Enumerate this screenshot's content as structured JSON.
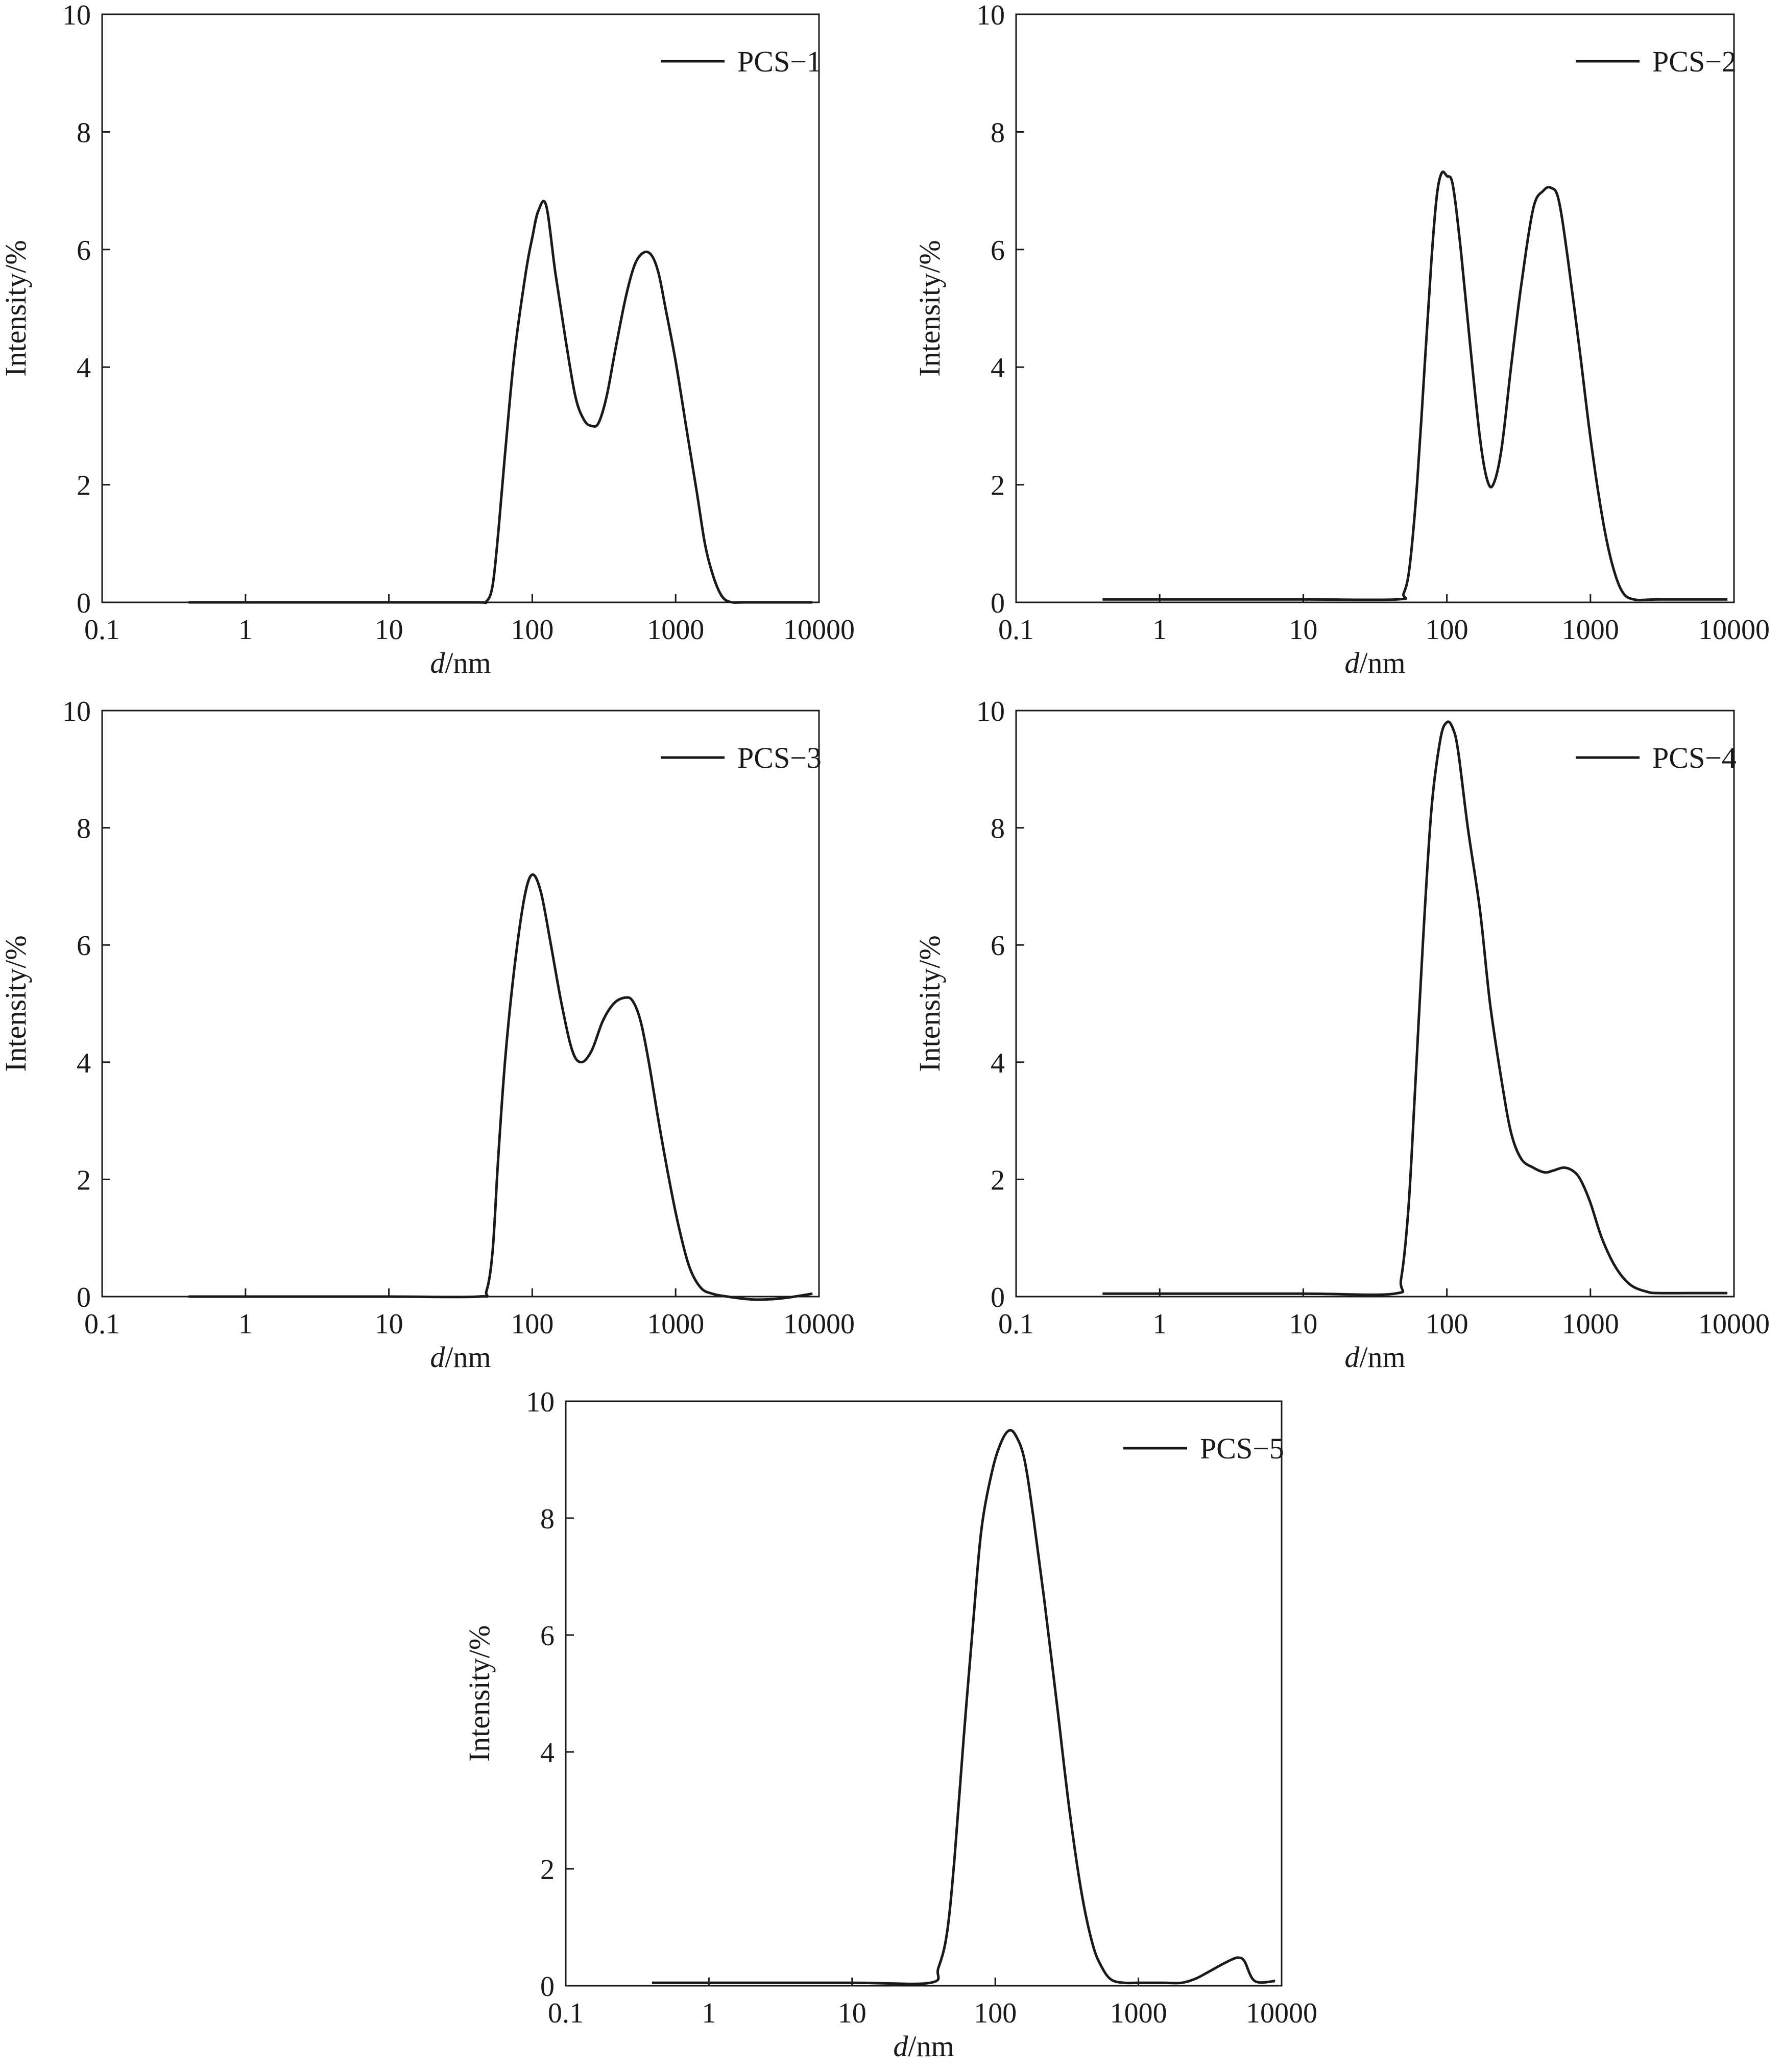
{
  "figure": {
    "background": "#ffffff",
    "line_color": "#1a1a1a"
  },
  "chart_data": [
    {
      "type": "line",
      "xscale": "log",
      "xlim": [
        0.1,
        10000
      ],
      "ylim": [
        0,
        10
      ],
      "xticks": [
        0.1,
        1,
        10,
        100,
        1000,
        10000
      ],
      "xtick_labels": [
        "0.1",
        "1",
        "10",
        "100",
        "1000",
        "10000"
      ],
      "yticks": [
        0,
        2,
        4,
        6,
        8,
        10
      ],
      "ytick_labels": [
        "0",
        "2",
        "4",
        "6",
        "8",
        "10"
      ],
      "xlabel_italic": "d",
      "xlabel_rest": "/nm",
      "ylabel": "Intensity/%",
      "legend_position": "top-right",
      "series": [
        {
          "name": "PCS−1",
          "x": [
            0.4,
            1,
            10,
            40,
            48,
            53,
            58,
            65,
            75,
            90,
            100,
            110,
            125,
            145,
            170,
            200,
            230,
            260,
            290,
            330,
            380,
            450,
            520,
            600,
            680,
            760,
            850,
            1000,
            1200,
            1400,
            1600,
            1800,
            2000,
            2200,
            2500,
            3000,
            5000,
            9000
          ],
          "y": [
            0,
            0,
            0,
            0,
            0.02,
            0.3,
            1.2,
            2.6,
            4.2,
            5.6,
            6.2,
            6.65,
            6.75,
            5.6,
            4.5,
            3.5,
            3.1,
            3.0,
            3.05,
            3.5,
            4.3,
            5.2,
            5.75,
            5.95,
            5.9,
            5.6,
            5.0,
            4.1,
            2.9,
            1.9,
            1.0,
            0.5,
            0.2,
            0.05,
            0,
            0,
            0,
            0
          ]
        }
      ]
    },
    {
      "type": "line",
      "xscale": "log",
      "xlim": [
        0.1,
        10000
      ],
      "ylim": [
        0,
        10
      ],
      "xticks": [
        0.1,
        1,
        10,
        100,
        1000,
        10000
      ],
      "xtick_labels": [
        "0.1",
        "1",
        "10",
        "100",
        "1000",
        "10000"
      ],
      "yticks": [
        0,
        2,
        4,
        6,
        8,
        10
      ],
      "ytick_labels": [
        "0",
        "2",
        "4",
        "6",
        "8",
        "10"
      ],
      "xlabel_italic": "d",
      "xlabel_rest": "/nm",
      "ylabel": "Intensity/%",
      "legend_position": "top-right",
      "series": [
        {
          "name": "PCS−2",
          "x": [
            0.4,
            1,
            10,
            45,
            50,
            55,
            62,
            70,
            78,
            85,
            92,
            100,
            110,
            125,
            145,
            170,
            190,
            210,
            240,
            280,
            330,
            400,
            470,
            530,
            600,
            700,
            850,
            1000,
            1200,
            1400,
            1650,
            2000,
            3000,
            9000
          ],
          "y": [
            0.05,
            0.05,
            0.05,
            0.05,
            0.15,
            0.6,
            2.0,
            4.0,
            5.8,
            6.9,
            7.3,
            7.25,
            7.1,
            6.0,
            4.4,
            2.8,
            2.1,
            2.0,
            2.6,
            4.0,
            5.4,
            6.7,
            7.0,
            7.05,
            6.85,
            5.8,
            4.2,
            2.8,
            1.5,
            0.7,
            0.2,
            0.05,
            0.05,
            0.05
          ]
        }
      ]
    },
    {
      "type": "line",
      "xscale": "log",
      "xlim": [
        0.1,
        10000
      ],
      "ylim": [
        0,
        10
      ],
      "xticks": [
        0.1,
        1,
        10,
        100,
        1000,
        10000
      ],
      "xtick_labels": [
        "0.1",
        "1",
        "10",
        "100",
        "1000",
        "10000"
      ],
      "yticks": [
        0,
        2,
        4,
        6,
        8,
        10
      ],
      "ytick_labels": [
        "0",
        "2",
        "4",
        "6",
        "8",
        "10"
      ],
      "xlabel_italic": "d",
      "xlabel_rest": "/nm",
      "ylabel": "Intensity/%",
      "legend_position": "top-right",
      "series": [
        {
          "name": "PCS−3",
          "x": [
            0.4,
            1,
            10,
            42,
            48,
            53,
            58,
            65,
            75,
            88,
            100,
            115,
            135,
            160,
            190,
            220,
            260,
            310,
            370,
            440,
            500,
            570,
            650,
            760,
            900,
            1050,
            1250,
            1500,
            1800,
            2300,
            3500,
            5500,
            9000
          ],
          "y": [
            0,
            0,
            0,
            0,
            0.1,
            0.8,
            2.4,
            4.1,
            5.6,
            6.8,
            7.2,
            6.9,
            6.0,
            5.0,
            4.2,
            4.0,
            4.2,
            4.7,
            5.0,
            5.1,
            5.05,
            4.7,
            4.0,
            3.0,
            2.0,
            1.2,
            0.5,
            0.15,
            0.05,
            0,
            -0.05,
            -0.03,
            0.05
          ]
        }
      ]
    },
    {
      "type": "line",
      "xscale": "log",
      "xlim": [
        0.1,
        10000
      ],
      "ylim": [
        0,
        10
      ],
      "xticks": [
        0.1,
        1,
        10,
        100,
        1000,
        10000
      ],
      "xtick_labels": [
        "0.1",
        "1",
        "10",
        "100",
        "1000",
        "10000"
      ],
      "yticks": [
        0,
        2,
        4,
        6,
        8,
        10
      ],
      "ytick_labels": [
        "0",
        "2",
        "4",
        "6",
        "8",
        "10"
      ],
      "xlabel_italic": "d",
      "xlabel_rest": "/nm",
      "ylabel": "Intensity/%",
      "legend_position": "top-right",
      "series": [
        {
          "name": "PCS−4",
          "x": [
            0.4,
            1,
            10,
            43,
            48,
            54,
            60,
            68,
            78,
            90,
            100,
            110,
            120,
            140,
            170,
            200,
            240,
            280,
            330,
            400,
            480,
            550,
            650,
            750,
            850,
            1000,
            1200,
            1500,
            1900,
            2500,
            3000,
            5000,
            9000
          ],
          "y": [
            0.05,
            0.05,
            0.05,
            0.05,
            0.3,
            1.5,
            3.5,
            6.0,
            8.3,
            9.5,
            9.8,
            9.7,
            9.3,
            8.0,
            6.6,
            5.0,
            3.7,
            2.8,
            2.35,
            2.2,
            2.12,
            2.15,
            2.2,
            2.15,
            2.0,
            1.6,
            1.0,
            0.5,
            0.2,
            0.08,
            0.06,
            0.06,
            0.06
          ]
        }
      ]
    },
    {
      "type": "line",
      "xscale": "log",
      "xlim": [
        0.1,
        10000
      ],
      "ylim": [
        0,
        10
      ],
      "xticks": [
        0.1,
        1,
        10,
        100,
        1000,
        10000
      ],
      "xtick_labels": [
        "0.1",
        "1",
        "10",
        "100",
        "1000",
        "10000"
      ],
      "yticks": [
        0,
        2,
        4,
        6,
        8,
        10
      ],
      "ytick_labels": [
        "0",
        "2",
        "4",
        "6",
        "8",
        "10"
      ],
      "xlabel_italic": "d",
      "xlabel_rest": "/nm",
      "ylabel": "Intensity/%",
      "legend_position": "top-right",
      "series": [
        {
          "name": "PCS−5",
          "x": [
            0.4,
            1,
            10,
            35,
            40,
            46,
            52,
            60,
            70,
            80,
            95,
            110,
            125,
            140,
            160,
            185,
            220,
            270,
            330,
            400,
            480,
            560,
            650,
            800,
            1000,
            1500,
            2000,
            2500,
            3000,
            3800,
            4500,
            5000,
            5500,
            6500,
            9000
          ],
          "y": [
            0.05,
            0.05,
            0.05,
            0.05,
            0.3,
            0.9,
            2.2,
            4.2,
            6.2,
            7.8,
            8.8,
            9.3,
            9.5,
            9.4,
            9.0,
            8.0,
            6.6,
            4.8,
            3.0,
            1.6,
            0.7,
            0.3,
            0.1,
            0.05,
            0.05,
            0.05,
            0.05,
            0.12,
            0.22,
            0.36,
            0.45,
            0.48,
            0.42,
            0.08,
            0.08
          ]
        }
      ]
    }
  ]
}
